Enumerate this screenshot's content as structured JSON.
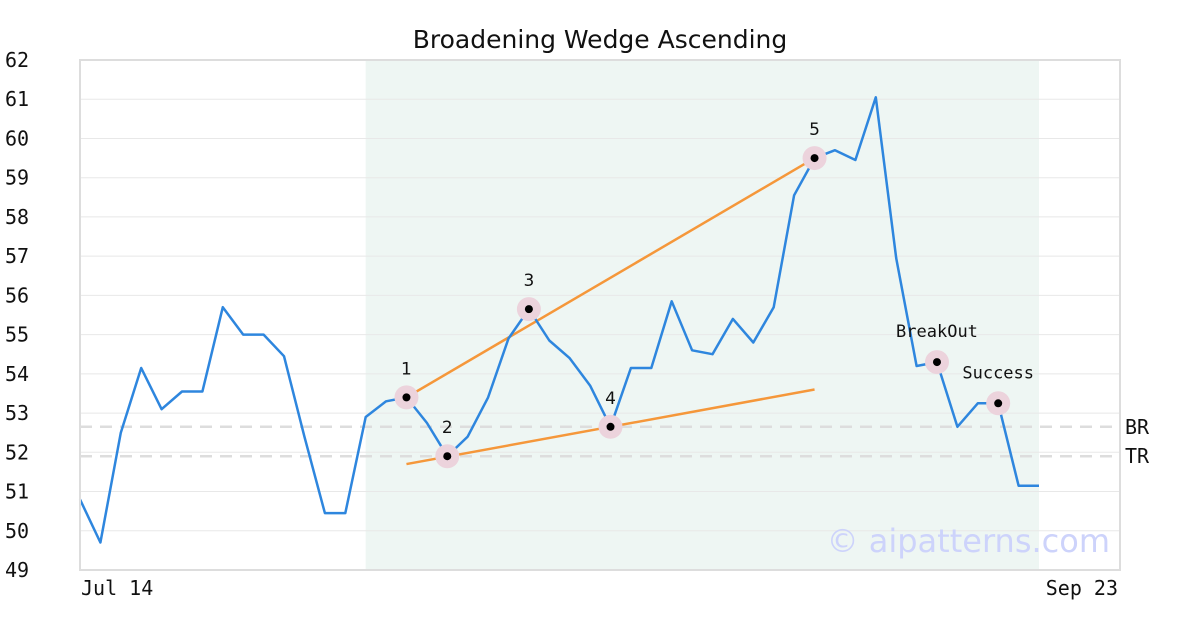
{
  "chart_data": {
    "type": "line",
    "title": "Broadening Wedge Ascending",
    "xlabel": "",
    "ylabel": "",
    "ylim": [
      49,
      62
    ],
    "yticks": [
      49,
      50,
      51,
      52,
      53,
      54,
      55,
      56,
      57,
      58,
      59,
      60,
      61,
      62
    ],
    "x_tick_labels": [
      "Jul 14",
      "Sep 23"
    ],
    "grid": true,
    "series": [
      {
        "color": "#2e86de",
        "values": [
          50.8,
          49.7,
          52.5,
          54.15,
          53.1,
          53.55,
          53.55,
          55.7,
          55.0,
          55.0,
          54.45,
          52.4,
          50.45,
          50.45,
          52.9,
          53.3,
          53.4,
          52.75,
          51.9,
          52.4,
          53.4,
          54.9,
          55.65,
          54.85,
          54.4,
          53.7,
          52.65,
          54.15,
          54.15,
          55.85,
          54.6,
          54.5,
          55.4,
          54.8,
          55.7,
          58.55,
          59.5,
          59.7,
          59.45,
          61.05,
          56.95,
          54.2,
          54.3,
          52.65,
          53.25,
          53.25,
          51.15,
          51.15
        ]
      }
    ],
    "highlight_region": {
      "x_start": 14,
      "x_end": 47,
      "color": "#eef6f3"
    },
    "pattern_points": [
      {
        "label": "1",
        "x": 16,
        "y": 53.4
      },
      {
        "label": "2",
        "x": 18,
        "y": 51.9
      },
      {
        "label": "3",
        "x": 22,
        "y": 55.65
      },
      {
        "label": "4",
        "x": 26,
        "y": 52.65
      },
      {
        "label": "5",
        "x": 36,
        "y": 59.5
      }
    ],
    "event_points": [
      {
        "label": "BreakOut",
        "x": 42,
        "y": 54.3
      },
      {
        "label": "Success",
        "x": 45,
        "y": 53.25
      }
    ],
    "trend_lines": [
      {
        "x1": 16,
        "y1": 53.4,
        "x2": 36,
        "y2": 59.5,
        "color": "#f5973a"
      },
      {
        "x1": 16,
        "y1": 51.7,
        "x2": 36,
        "y2": 53.6,
        "color": "#f5973a"
      }
    ],
    "reference_lines": [
      {
        "label": "BR",
        "y": 52.65
      },
      {
        "label": "TR",
        "y": 51.9
      }
    ],
    "watermark": "© aipatterns.com",
    "colors": {
      "line": "#2e86de",
      "trend": "#f5973a",
      "highlight": "#eef6f3",
      "marker_halo": "#ecd3dc",
      "reference": "#dddddd",
      "watermark": "#cdd3fb"
    }
  }
}
